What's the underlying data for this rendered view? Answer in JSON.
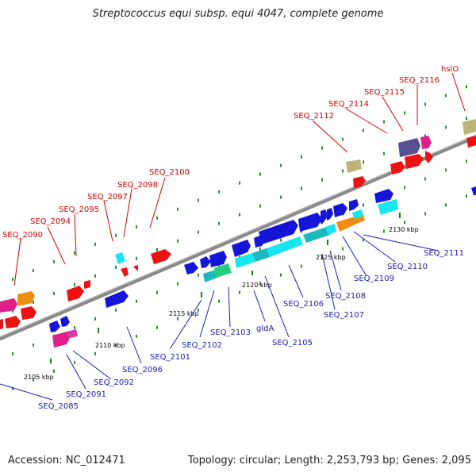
{
  "title": "Streptococcus equi subsp. equi 4047, complete genome",
  "accession": "Accession: NC_012471",
  "summary": "Topology: circular; Length: 2,253,793 bp; Genes: 2,095",
  "colors": {
    "backbone": "#8a8a8a",
    "tick": "#2e8b2e",
    "red": "#ee1111",
    "magenta": "#e0208a",
    "orange": "#f08c10",
    "olive": "#bdb479",
    "purple": "#55508f",
    "blue": "#1515d8",
    "cyan": "#15e6f0",
    "teal": "#1cb8bd",
    "green": "#1fcf7c",
    "label_top": "#d40000",
    "label_bottom": "#1c1cb4"
  },
  "scale_labels": [
    "2105 kbp",
    "2110 kbp",
    "2115 kbp",
    "2120 kbp",
    "2125 kbp",
    "2130 kbp"
  ],
  "top_labels": [
    "SEQ_2090",
    "SEQ_2094",
    "SEQ_2095",
    "SEQ_2097",
    "SEQ_2098",
    "SEQ_2100",
    "SEQ_2112",
    "SEQ_2114",
    "SEQ_2115",
    "SEQ_2116",
    "hslO"
  ],
  "bottom_labels": [
    "SEQ_2085",
    "SEQ_2091",
    "SEQ_2092",
    "SEQ_2096",
    "SEQ_2101",
    "SEQ_2102",
    "SEQ_2103",
    "gldA",
    "SEQ_2105",
    "SEQ_2106",
    "SEQ_2107",
    "SEQ_2108",
    "SEQ_2109",
    "SEQ_2110",
    "SEQ_2111"
  ]
}
